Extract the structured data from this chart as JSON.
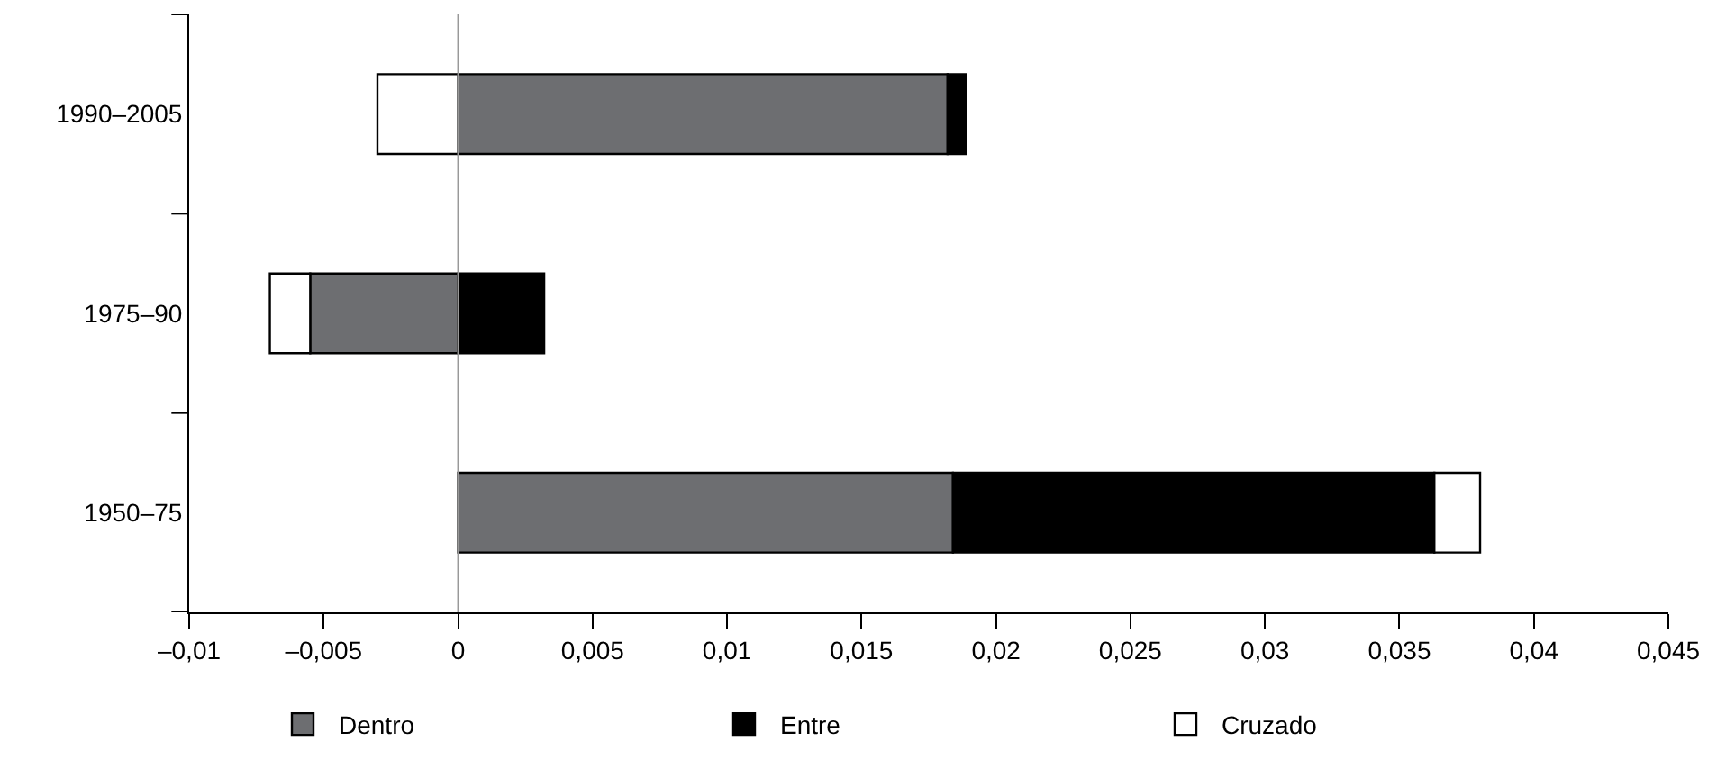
{
  "chart_data": {
    "type": "bar",
    "orientation": "horizontal",
    "stacked": true,
    "categories": [
      "1990–2005",
      "1975–90",
      "1950–75"
    ],
    "series": [
      {
        "name": "Dentro",
        "color": "#6d6e71",
        "values": [
          0.0182,
          -0.0055,
          0.0184
        ]
      },
      {
        "name": "Entre",
        "color": "#000000",
        "values": [
          0.0007,
          0.0032,
          0.0179
        ]
      },
      {
        "name": "Cruzado",
        "color": "#ffffff",
        "values": [
          -0.003,
          -0.0015,
          0.0017
        ]
      }
    ],
    "xlim": [
      -0.01,
      0.045
    ],
    "xticks": [
      {
        "value": -0.01,
        "label": "–0,01"
      },
      {
        "value": -0.005,
        "label": "–0,005"
      },
      {
        "value": 0,
        "label": "0"
      },
      {
        "value": 0.005,
        "label": "0,005"
      },
      {
        "value": 0.01,
        "label": "0,01"
      },
      {
        "value": 0.015,
        "label": "0,015"
      },
      {
        "value": 0.02,
        "label": "0,02"
      },
      {
        "value": 0.025,
        "label": "0,025"
      },
      {
        "value": 0.03,
        "label": "0,03"
      },
      {
        "value": 0.035,
        "label": "0,035"
      },
      {
        "value": 0.04,
        "label": "0,04"
      },
      {
        "value": 0.045,
        "label": "0,045"
      }
    ],
    "ref_lines": [
      {
        "axis": "x",
        "value": 0,
        "color": "#999999"
      }
    ],
    "legend": "bottom"
  }
}
